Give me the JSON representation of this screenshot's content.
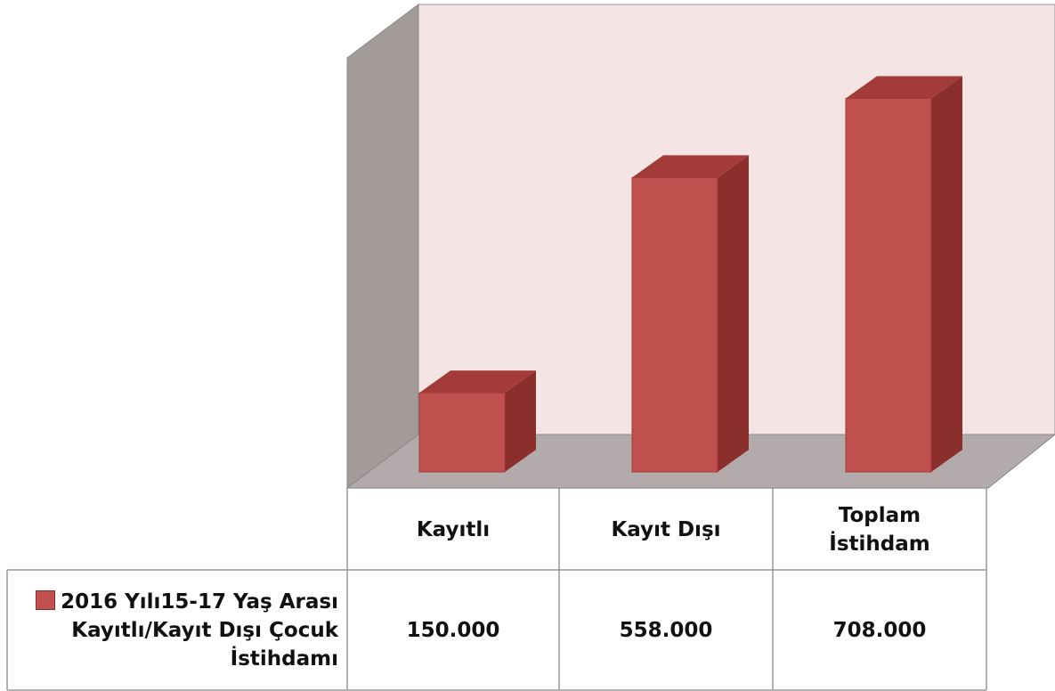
{
  "chart_data": {
    "type": "bar3d",
    "categories": [
      "Kayıtlı",
      "Kayıt Dışı",
      "Toplam İstihdam"
    ],
    "series": [
      {
        "name": "2016 Yılı15-17 Yaş Arası Kayıtlı/Kayıt Dışı Çocuk İstihdamı",
        "color": "#c0504d",
        "values": [
          150000,
          558000,
          708000
        ],
        "value_labels": [
          "150.000",
          "558.000",
          "708.000"
        ]
      }
    ],
    "ylim": [
      0,
      800000
    ]
  }
}
